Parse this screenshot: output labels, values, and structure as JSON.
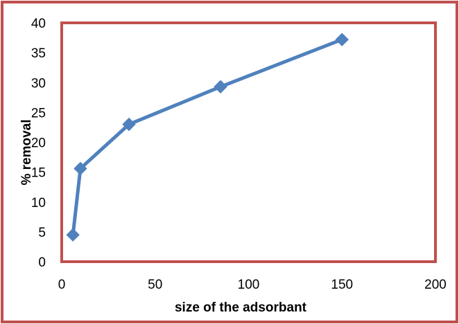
{
  "chart_data": {
    "type": "line",
    "title": "",
    "xlabel": "size of the adsorbant",
    "ylabel": "% removal",
    "xlim": [
      0,
      200
    ],
    "ylim": [
      0,
      40
    ],
    "xticks": [
      0,
      50,
      100,
      150,
      200
    ],
    "yticks": [
      0,
      5,
      10,
      15,
      20,
      25,
      30,
      35,
      40
    ],
    "grid": false,
    "legend": "none",
    "series": [
      {
        "color": "#4f81bd",
        "marker": "diamond",
        "x": [
          6,
          10,
          36,
          85,
          150
        ],
        "y": [
          4.5,
          15.6,
          23.0,
          29.3,
          37.2
        ]
      }
    ]
  },
  "colors": {
    "outer_border": "#c0504d",
    "plot_area_border": "#c0504d",
    "series_line": "#4f81bd"
  }
}
